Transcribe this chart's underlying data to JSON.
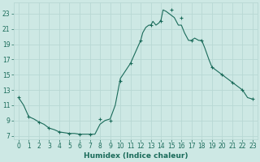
{
  "x": [
    0,
    0.5,
    1,
    1.5,
    2,
    2.5,
    3,
    3.5,
    4,
    4.5,
    5,
    5.5,
    6,
    6.5,
    7,
    7.5,
    8,
    8.5,
    9,
    9.5,
    10,
    10.5,
    11,
    11.5,
    12,
    12.2,
    12.5,
    12.8,
    13,
    13.2,
    13.5,
    13.8,
    14,
    14.2,
    14.5,
    14.8,
    15,
    15.3,
    15.7,
    16,
    16.3,
    16.7,
    17,
    17.3,
    17.7,
    18,
    18.3,
    18.7,
    19,
    19.5,
    20,
    20.5,
    21,
    21.5,
    22,
    22.5,
    23
  ],
  "y": [
    12.0,
    11.0,
    9.5,
    9.2,
    8.8,
    8.5,
    8.0,
    7.8,
    7.5,
    7.4,
    7.3,
    7.3,
    7.2,
    7.2,
    7.2,
    7.2,
    8.5,
    9.0,
    9.2,
    11.0,
    14.5,
    15.5,
    16.5,
    18.0,
    19.5,
    20.5,
    21.2,
    21.5,
    21.5,
    22.0,
    21.5,
    21.8,
    22.2,
    23.5,
    23.3,
    23.0,
    22.8,
    22.5,
    21.5,
    21.5,
    20.5,
    19.5,
    19.5,
    19.8,
    19.5,
    19.5,
    18.5,
    17.0,
    16.0,
    15.5,
    15.0,
    14.5,
    14.0,
    13.5,
    13.0,
    12.0,
    11.8
  ],
  "marker_x": [
    0,
    1,
    2,
    3,
    4,
    5,
    6,
    7,
    8,
    9,
    10,
    11,
    12,
    13,
    14,
    15,
    16,
    17,
    18,
    19,
    20,
    21,
    22,
    23
  ],
  "marker_y": [
    12.0,
    9.5,
    8.8,
    8.0,
    7.5,
    7.3,
    7.2,
    7.2,
    9.2,
    9.0,
    14.2,
    16.5,
    19.5,
    21.5,
    22.0,
    23.5,
    22.5,
    19.5,
    19.5,
    16.0,
    15.0,
    14.0,
    13.0,
    11.8
  ],
  "line_color": "#1a6b5a",
  "marker": "+",
  "marker_size": 3,
  "bg_color": "#cde8e4",
  "grid_color": "#b8d8d4",
  "xlabel": "Humidex (Indice chaleur)",
  "xlim": [
    -0.5,
    23.5
  ],
  "ylim": [
    6.5,
    24.5
  ],
  "yticks": [
    7,
    9,
    11,
    13,
    15,
    17,
    19,
    21,
    23
  ],
  "xticks": [
    0,
    1,
    2,
    3,
    4,
    5,
    6,
    7,
    8,
    9,
    10,
    11,
    12,
    13,
    14,
    15,
    16,
    17,
    18,
    19,
    20,
    21,
    22,
    23
  ],
  "xlabel_fontsize": 6.5,
  "tick_fontsize": 5.5
}
